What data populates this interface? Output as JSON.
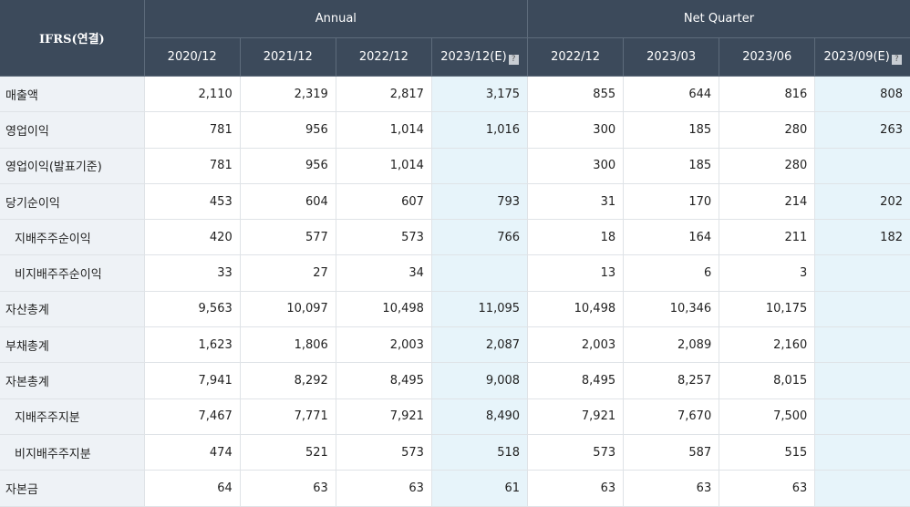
{
  "header": {
    "corner": "IFRS(연결)",
    "groups": [
      "Annual",
      "Net Quarter"
    ],
    "columns": [
      "2020/12",
      "2021/12",
      "2022/12",
      "2023/12(E)",
      "2022/12",
      "2023/03",
      "2023/06",
      "2023/09(E)"
    ]
  },
  "rows": [
    {
      "label": "매출액",
      "values": [
        "2,110",
        "2,319",
        "2,817",
        "3,175",
        "855",
        "644",
        "816",
        "808"
      ]
    },
    {
      "label": "영업이익",
      "values": [
        "781",
        "956",
        "1,014",
        "1,016",
        "300",
        "185",
        "280",
        "263"
      ]
    },
    {
      "label": "영업이익(발표기준)",
      "values": [
        "781",
        "956",
        "1,014",
        "",
        "300",
        "185",
        "280",
        ""
      ]
    },
    {
      "label": "당기순이익",
      "values": [
        "453",
        "604",
        "607",
        "793",
        "31",
        "170",
        "214",
        "202"
      ]
    },
    {
      "label": "지배주주순이익",
      "values": [
        "420",
        "577",
        "573",
        "766",
        "18",
        "164",
        "211",
        "182"
      ]
    },
    {
      "label": "비지배주주순이익",
      "values": [
        "33",
        "27",
        "34",
        "",
        "13",
        "6",
        "3",
        ""
      ]
    },
    {
      "label": "자산총계",
      "values": [
        "9,563",
        "10,097",
        "10,498",
        "11,095",
        "10,498",
        "10,346",
        "10,175",
        ""
      ]
    },
    {
      "label": "부채총계",
      "values": [
        "1,623",
        "1,806",
        "2,003",
        "2,087",
        "2,003",
        "2,089",
        "2,160",
        ""
      ]
    },
    {
      "label": "자본총계",
      "values": [
        "7,941",
        "8,292",
        "8,495",
        "9,008",
        "8,495",
        "8,257",
        "8,015",
        ""
      ]
    },
    {
      "label": "지배주주지분",
      "values": [
        "7,467",
        "7,771",
        "7,921",
        "8,490",
        "7,921",
        "7,670",
        "7,500",
        ""
      ]
    },
    {
      "label": "비지배주주지분",
      "values": [
        "474",
        "521",
        "573",
        "518",
        "573",
        "587",
        "515",
        ""
      ]
    },
    {
      "label": "자본금",
      "values": [
        "64",
        "63",
        "63",
        "61",
        "63",
        "63",
        "63",
        ""
      ]
    }
  ],
  "chart_data": {
    "type": "table",
    "title": "IFRS(연결)",
    "column_groups": [
      {
        "name": "Annual",
        "columns": [
          "2020/12",
          "2021/12",
          "2022/12",
          "2023/12(E)"
        ]
      },
      {
        "name": "Net Quarter",
        "columns": [
          "2022/12",
          "2023/03",
          "2023/06",
          "2023/09(E)"
        ]
      }
    ],
    "row_labels": [
      "매출액",
      "영업이익",
      "영업이익(발표기준)",
      "당기순이익",
      "지배주주순이익",
      "비지배주주순이익",
      "자산총계",
      "부채총계",
      "자본총계",
      "지배주주지분",
      "비지배주주지분",
      "자본금"
    ],
    "values": [
      [
        2110,
        2319,
        2817,
        3175,
        855,
        644,
        816,
        808
      ],
      [
        781,
        956,
        1014,
        1016,
        300,
        185,
        280,
        263
      ],
      [
        781,
        956,
        1014,
        null,
        300,
        185,
        280,
        null
      ],
      [
        453,
        604,
        607,
        793,
        31,
        170,
        214,
        202
      ],
      [
        420,
        577,
        573,
        766,
        18,
        164,
        211,
        182
      ],
      [
        33,
        27,
        34,
        null,
        13,
        6,
        3,
        null
      ],
      [
        9563,
        10097,
        10498,
        11095,
        10498,
        10346,
        10175,
        null
      ],
      [
        1623,
        1806,
        2003,
        2087,
        2003,
        2089,
        2160,
        null
      ],
      [
        7941,
        8292,
        8495,
        9008,
        8495,
        8257,
        8015,
        null
      ],
      [
        7467,
        7771,
        7921,
        8490,
        7921,
        7670,
        7500,
        null
      ],
      [
        474,
        521,
        573,
        518,
        573,
        587,
        515,
        null
      ],
      [
        64,
        63,
        63,
        61,
        63,
        63,
        63,
        null
      ]
    ]
  },
  "colors": {
    "header_bg": "#3c4a5b",
    "label_bg": "#eef2f6",
    "estimate_bg": "#e7f4fa"
  }
}
